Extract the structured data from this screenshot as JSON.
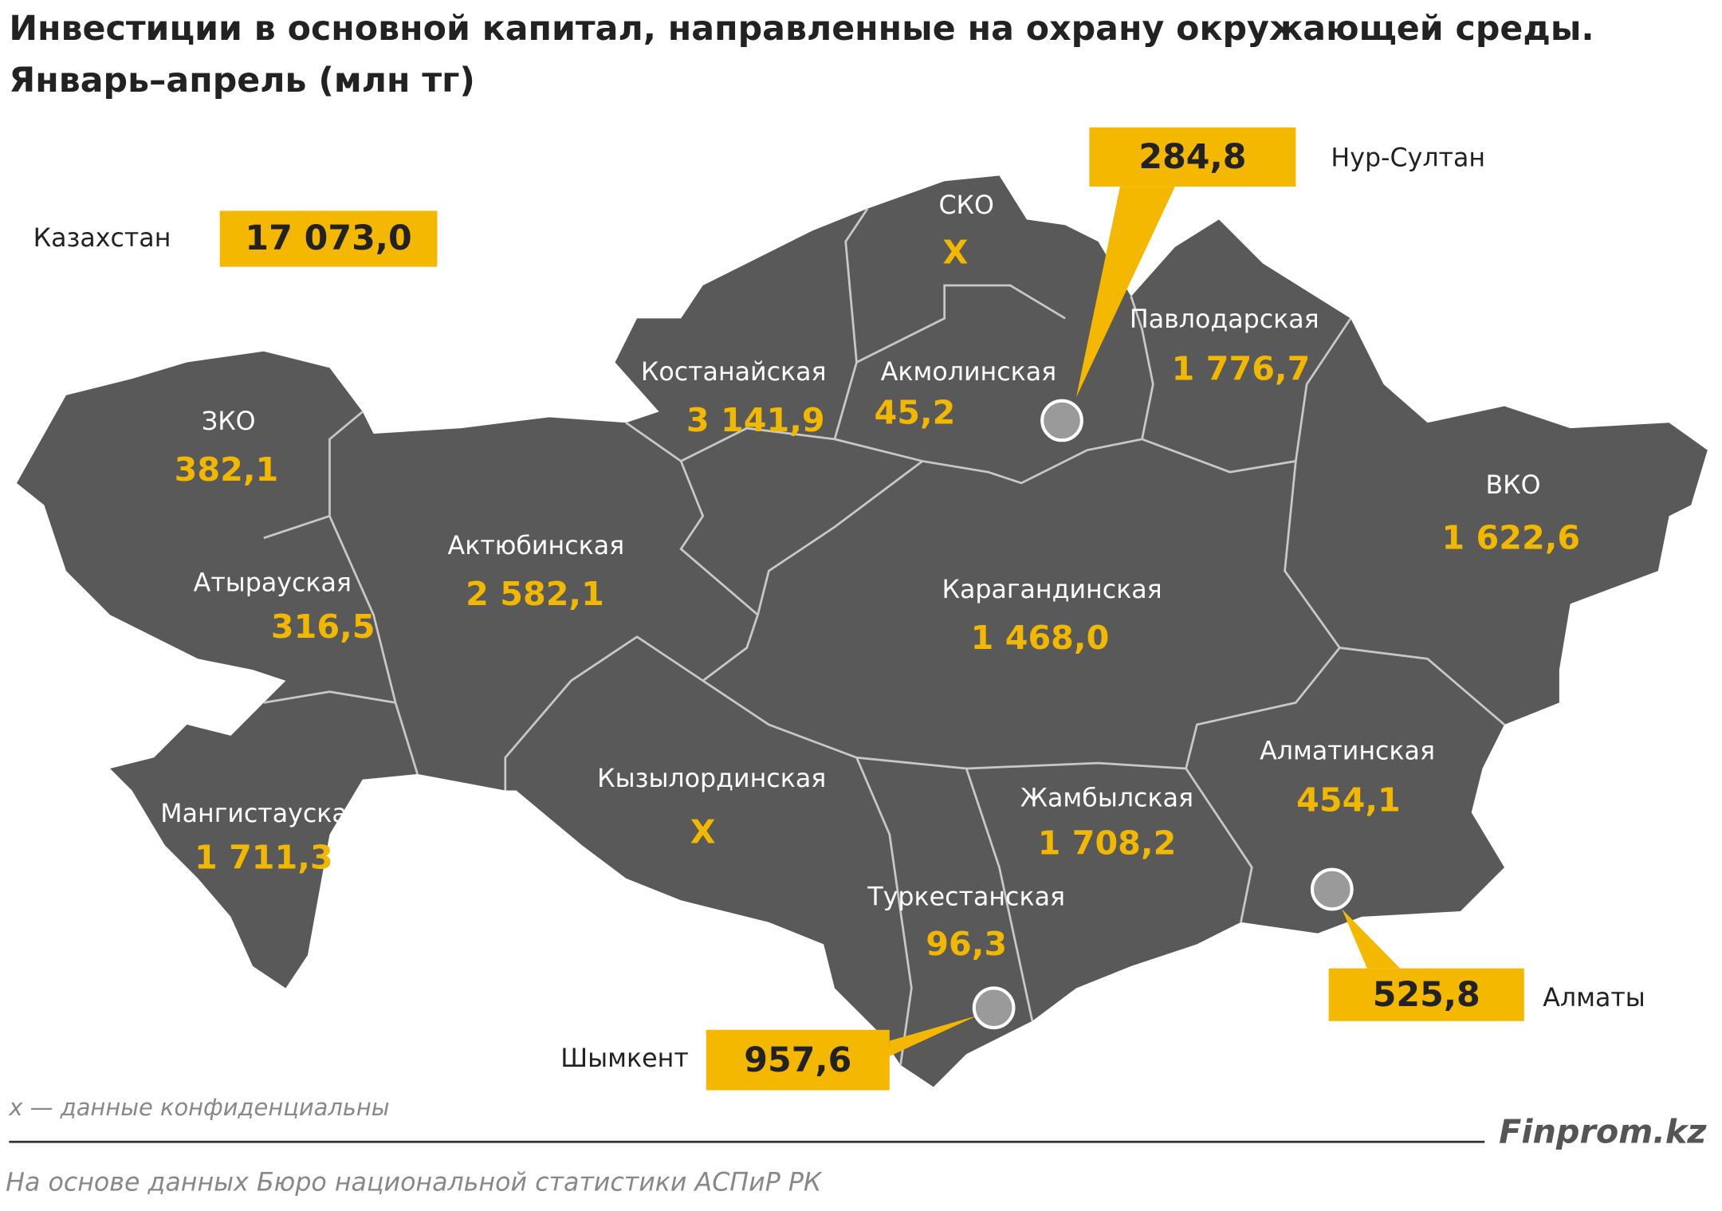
{
  "title": [
    "Инвестиции в основной капитал, направленные на охрану окружающей среды.",
    "Январь–апрель (млн тг)"
  ],
  "total": {
    "name": "Казахстан",
    "value": "17 073,0"
  },
  "regions": [
    {
      "name": "СКО",
      "value": "X"
    },
    {
      "name": "Павлодарская",
      "value": "1 776,7"
    },
    {
      "name": "Костанайская",
      "value": "3 141,9"
    },
    {
      "name": "Акмолинская",
      "value": "45,2"
    },
    {
      "name": "ЗКО",
      "value": "382,1"
    },
    {
      "name": "ВКО",
      "value": "1 622,6"
    },
    {
      "name": "Актюбинская",
      "value": "2 582,1"
    },
    {
      "name": "Атырауская",
      "value": "316,5"
    },
    {
      "name": "Карагандинская",
      "value": "1 468,0"
    },
    {
      "name": "Алматинская",
      "value": "454,1"
    },
    {
      "name": "Кызылординская",
      "value": "X"
    },
    {
      "name": "Жамбылская",
      "value": "1 708,2"
    },
    {
      "name": "Мангистауская",
      "value": "1 711,3"
    },
    {
      "name": "Туркестанская",
      "value": "96,3"
    }
  ],
  "cities": [
    {
      "name": "Нур-Султан",
      "value": "284,8"
    },
    {
      "name": "Алматы",
      "value": "525,8"
    },
    {
      "name": "Шымкент",
      "value": "957,6"
    }
  ],
  "note": "х — данные конфиденциальны",
  "brand": "Finprom.kz",
  "source": "На основе данных  Бюро национальной  статистики АСПиР РК"
}
